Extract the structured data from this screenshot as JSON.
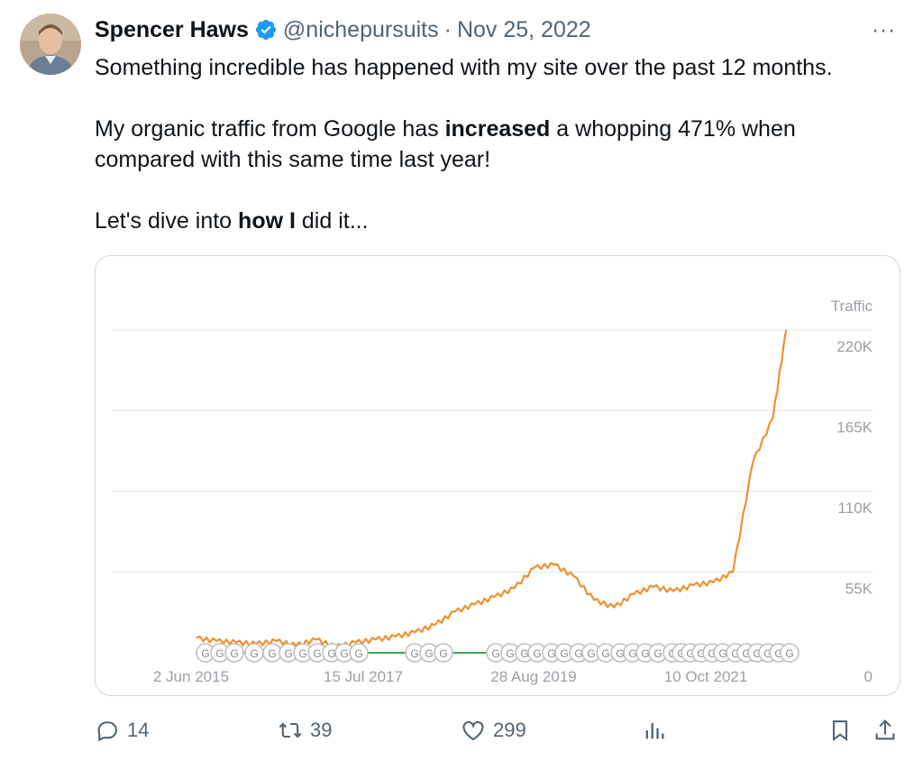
{
  "tweet": {
    "author_name": "Spencer Haws",
    "handle": "@nichepursuits",
    "separator": "·",
    "date": "Nov 25, 2022",
    "more_label": "···",
    "text_line1": "Something incredible has happened with my site over the past 12 months.",
    "text_line2_pre": "My organic traffic from Google has ",
    "text_line2_bold": "increased",
    "text_line2_post": " a whopping 471% when",
    "text_line3": "compared with this same time last year!",
    "text_line4_pre": "Let's dive into ",
    "text_line4_bold": "how I",
    "text_line4_post": " did it..."
  },
  "chart_data": {
    "type": "line",
    "ylabel": "Traffic",
    "ylim": [
      0,
      220000
    ],
    "y_ticks": [
      {
        "value": 220000,
        "label": "220K"
      },
      {
        "value": 165000,
        "label": "165K"
      },
      {
        "value": 110000,
        "label": "110K"
      },
      {
        "value": 55000,
        "label": "55K"
      },
      {
        "value": 0,
        "label": "0"
      }
    ],
    "x_ticks": [
      "2 Jun 2015",
      "15 Jul 2017",
      "28 Aug 2019",
      "10 Oct 2021"
    ],
    "grid": true,
    "series": [
      {
        "color": "#f0902e",
        "x": [
          "2015-06",
          "2015-09",
          "2015-12",
          "2016-03",
          "2016-06",
          "2016-09",
          "2016-12",
          "2017-03",
          "2017-06",
          "2017-09",
          "2017-12",
          "2018-03",
          "2018-06",
          "2018-09",
          "2018-12",
          "2019-03",
          "2019-06",
          "2019-09",
          "2019-12",
          "2020-03",
          "2020-06",
          "2020-09",
          "2020-12",
          "2021-03",
          "2021-06",
          "2021-09",
          "2021-12",
          "2022-03",
          "2022-06",
          "2022-09",
          "2022-11"
        ],
        "values": [
          10000,
          8000,
          7000,
          6000,
          8000,
          5000,
          9000,
          4000,
          7000,
          9000,
          11000,
          14000,
          19000,
          28000,
          33000,
          38000,
          44000,
          58000,
          60000,
          52000,
          36000,
          31000,
          40000,
          45000,
          42000,
          46000,
          48000,
          55000,
          130000,
          160000,
          220000
        ]
      }
    ],
    "annotation_marker_label": "G"
  },
  "actions": {
    "replies": "14",
    "retweets": "39",
    "likes": "299"
  }
}
